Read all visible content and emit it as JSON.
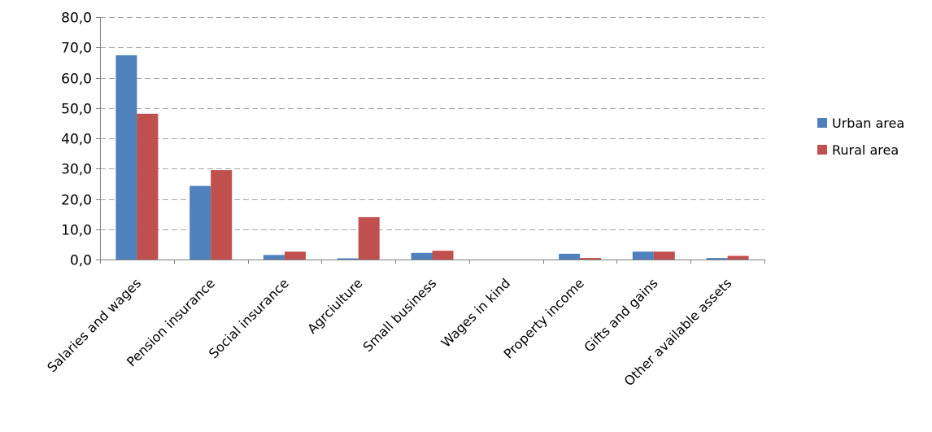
{
  "chart_data": {
    "type": "bar",
    "categories": [
      "Salaries and  wages",
      "Pension insurance",
      "Social insurance",
      "Agrciulture",
      "Small  business",
      "Wages  in  kind",
      "Property income",
      "Gifts  and  gains",
      "Other available  assets"
    ],
    "series": [
      {
        "name": "Urban area",
        "color": "#4F81BD",
        "values": [
          67.4,
          24.3,
          1.5,
          0.4,
          2.2,
          0.0,
          1.9,
          2.6,
          0.5
        ]
      },
      {
        "name": "Rural area",
        "color": "#C0504D",
        "values": [
          48.1,
          29.5,
          2.6,
          14.0,
          2.9,
          0.0,
          0.5,
          2.6,
          1.2
        ]
      }
    ],
    "y_ticks": [
      "0,0",
      "10,0",
      "20,0",
      "30,0",
      "40,0",
      "50,0",
      "60,0",
      "70,0",
      "80,0"
    ],
    "ylim": [
      0,
      80
    ],
    "y_step": 10,
    "grid": true,
    "grid_style": "dashed",
    "legend_position": "right",
    "xlabel": "",
    "ylabel": "",
    "title": ""
  }
}
